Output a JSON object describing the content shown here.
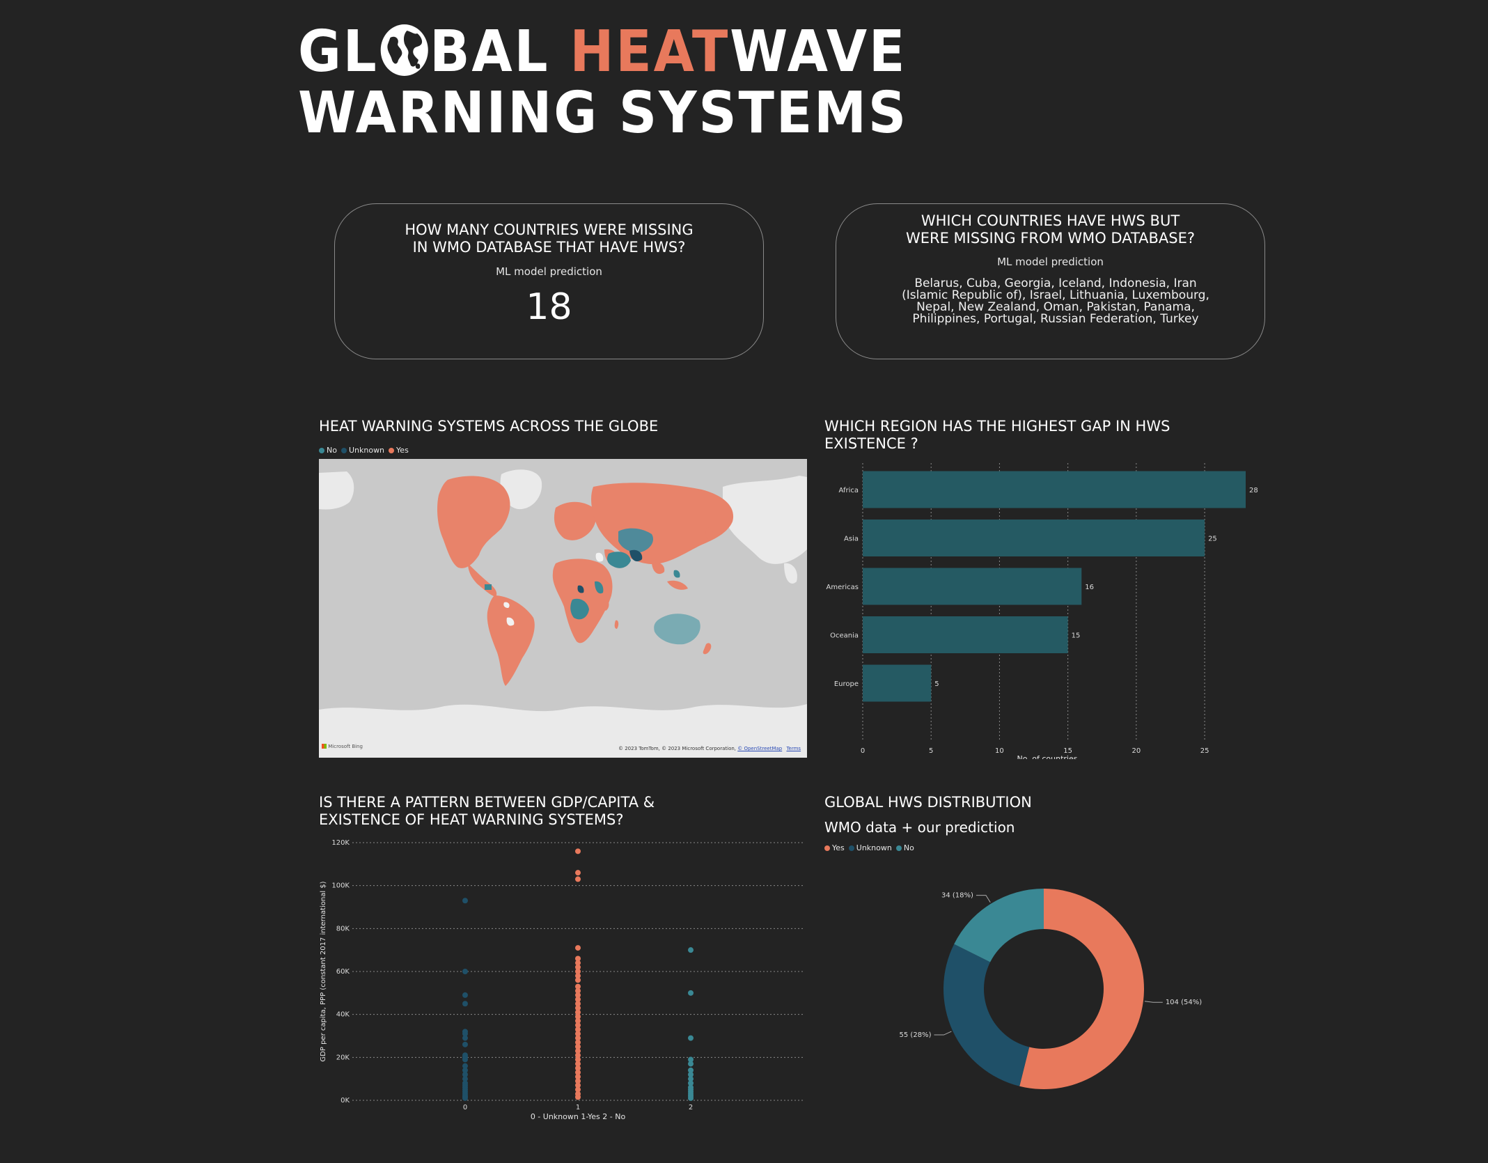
{
  "header": {
    "title_line1_a": "GL",
    "title_line1_b": "BAL ",
    "title_line1_hot": "HEAT",
    "title_line1_c": "WAVE",
    "title_line2": "WARNING SYSTEMS",
    "globe_icon": "globe-icon"
  },
  "kpi_missing_count": {
    "question": "HOW MANY COUNTRIES WERE MISSING IN WMO DATABASE THAT HAVE HWS?",
    "subtitle": "ML model prediction",
    "value": "18"
  },
  "kpi_missing_list": {
    "question": "WHICH COUNTRIES HAVE HWS BUT WERE MISSING FROM WMO DATABASE?",
    "subtitle": "ML model prediction",
    "countries": "Belarus, Cuba, Georgia, Iceland, Indonesia, Iran (Islamic Republic of), Israel, Lithuania, Luxembourg, Nepal, New Zealand, Oman, Pakistan, Panama, Philippines, Portugal, Russian Federation, Turkey"
  },
  "map_section": {
    "title": "HEAT WARNING SYSTEMS ACROSS THE GLOBE",
    "legend": [
      {
        "label": "No",
        "color": "#3a8894"
      },
      {
        "label": "Unknown",
        "color": "#1f5068"
      },
      {
        "label": "Yes",
        "color": "#e8795c"
      }
    ],
    "logo_text": "Microsoft Bing",
    "attribution": "© 2023 TomTom, © 2023 Microsoft Corporation,",
    "attribution_link": "© OpenStreetMap",
    "terms_link": "Terms"
  },
  "bar_section": {
    "title_line1": "WHICH REGION HAS THE HIGHEST GAP IN HWS",
    "title_line2": "EXISTENCE ?"
  },
  "scatter_section": {
    "title_line1": "IS THERE A PATTERN BETWEEN GDP/CAPITA &",
    "title_line2": "EXISTENCE OF HEAT WARNING SYSTEMS?"
  },
  "donut_section": {
    "title": "GLOBAL HWS DISTRIBUTION",
    "subtitle": "WMO data + our prediction",
    "legend": [
      {
        "label": "Yes",
        "color": "#e8795c"
      },
      {
        "label": "Unknown",
        "color": "#1f5068"
      },
      {
        "label": "No",
        "color": "#3a8894"
      }
    ]
  },
  "chart_data": [
    {
      "type": "bar",
      "orientation": "horizontal",
      "categories": [
        "Africa",
        "Asia",
        "Americas",
        "Oceania",
        "Europe"
      ],
      "values": [
        28,
        25,
        16,
        15,
        5
      ],
      "xlabel": "No. of countries",
      "xlim": [
        0,
        28
      ],
      "xticks": [
        0,
        5,
        10,
        15,
        20,
        25
      ],
      "color": "#255a63",
      "grid": "vertical dotted"
    },
    {
      "type": "scatter",
      "xlabel": "0 - Unknown 1-Yes 2 - No",
      "ylabel": "GDP per capita, PPP (constant 2017 international $)",
      "xticks": [
        0,
        1,
        2
      ],
      "yticks": [
        0,
        20000,
        40000,
        60000,
        80000,
        100000,
        120000
      ],
      "ytick_labels": [
        "0K",
        "20K",
        "40K",
        "60K",
        "80K",
        "100K",
        "120K"
      ],
      "ylim": [
        0,
        120000
      ],
      "grid": "horizontal dotted",
      "series": [
        {
          "color": "#1f5068",
          "x": 0,
          "y": [
            93000,
            60000,
            49000,
            45000,
            32000,
            31000,
            29000,
            26000,
            21000,
            20000,
            19000,
            16000,
            14000,
            12000,
            10000,
            8000,
            7000,
            6000,
            5000,
            4000,
            3000,
            2000,
            1500,
            1000
          ]
        },
        {
          "color": "#e8795c",
          "x": 1,
          "y": [
            116000,
            106000,
            103000,
            71000,
            66000,
            64000,
            62000,
            60000,
            58000,
            56000,
            53000,
            51000,
            49000,
            47000,
            45000,
            43000,
            41000,
            39000,
            37000,
            35000,
            33000,
            31000,
            29000,
            27000,
            25000,
            23000,
            21000,
            19000,
            17000,
            15000,
            13000,
            11000,
            9000,
            7000,
            5000,
            3000,
            1500
          ]
        },
        {
          "color": "#3a8894",
          "x": 2,
          "y": [
            70000,
            50000,
            29000,
            19000,
            17000,
            14000,
            12000,
            10000,
            8000,
            6000,
            5000,
            4000,
            3000,
            2000,
            1000
          ]
        }
      ]
    },
    {
      "type": "pie",
      "variant": "donut",
      "labels": [
        "Yes",
        "Unknown",
        "No"
      ],
      "values": [
        104,
        55,
        34
      ],
      "percent": [
        54,
        28,
        18
      ],
      "data_labels": [
        "104 (54%)",
        "55 (28%)",
        "34 (18%)"
      ],
      "colors": [
        "#e8795c",
        "#1f5068",
        "#3a8894"
      ]
    }
  ]
}
